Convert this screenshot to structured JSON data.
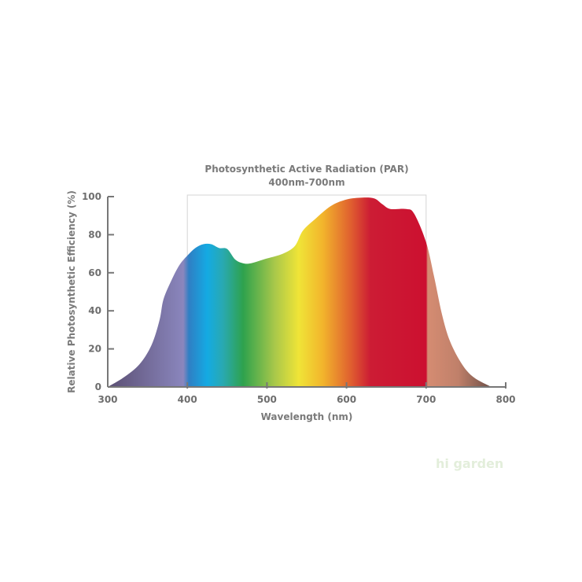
{
  "chart_data": {
    "type": "area",
    "title": "Photosynthetic Active Radiation (PAR)",
    "subtitle": "400nm-700nm",
    "xlabel": "Wavelength (nm)",
    "ylabel": "Relative Photosynthetic Efficiency (%)",
    "xlim": [
      300,
      800
    ],
    "ylim": [
      0,
      100
    ],
    "xticks": [
      300,
      400,
      500,
      600,
      700,
      800
    ],
    "yticks": [
      0,
      20,
      40,
      60,
      80,
      100
    ],
    "grid": false,
    "highlight_range": [
      400,
      700
    ],
    "x": [
      300,
      320,
      340,
      355,
      365,
      370,
      380,
      390,
      400,
      410,
      420,
      430,
      440,
      450,
      460,
      470,
      480,
      500,
      520,
      535,
      545,
      560,
      580,
      600,
      620,
      635,
      645,
      655,
      675,
      685,
      700,
      710,
      720,
      730,
      745,
      760,
      782
    ],
    "y": [
      0,
      5,
      12,
      22,
      35,
      46,
      56,
      64,
      69,
      73,
      75,
      75,
      73,
      72.5,
      67,
      65,
      65,
      67.5,
      70,
      74,
      82,
      88,
      95,
      98.5,
      99.5,
      99,
      96,
      93.5,
      93.5,
      91,
      76,
      58,
      38,
      24,
      12,
      5,
      0
    ],
    "gradient": [
      {
        "nm": 300,
        "color": "#5b4f73"
      },
      {
        "nm": 395,
        "color": "#8a86bd"
      },
      {
        "nm": 402,
        "color": "#2f7fc4"
      },
      {
        "nm": 425,
        "color": "#14aae3"
      },
      {
        "nm": 445,
        "color": "#29a9b0"
      },
      {
        "nm": 470,
        "color": "#2ea24d"
      },
      {
        "nm": 510,
        "color": "#a9c84a"
      },
      {
        "nm": 540,
        "color": "#f0e437"
      },
      {
        "nm": 570,
        "color": "#f2b52c"
      },
      {
        "nm": 605,
        "color": "#e0602f"
      },
      {
        "nm": 630,
        "color": "#cc1c34"
      },
      {
        "nm": 700,
        "color": "#cc1030"
      },
      {
        "nm": 702,
        "color": "#d58c72"
      },
      {
        "nm": 740,
        "color": "#c0806a"
      },
      {
        "nm": 782,
        "color": "#6e5048"
      }
    ]
  },
  "watermark": "higarden"
}
